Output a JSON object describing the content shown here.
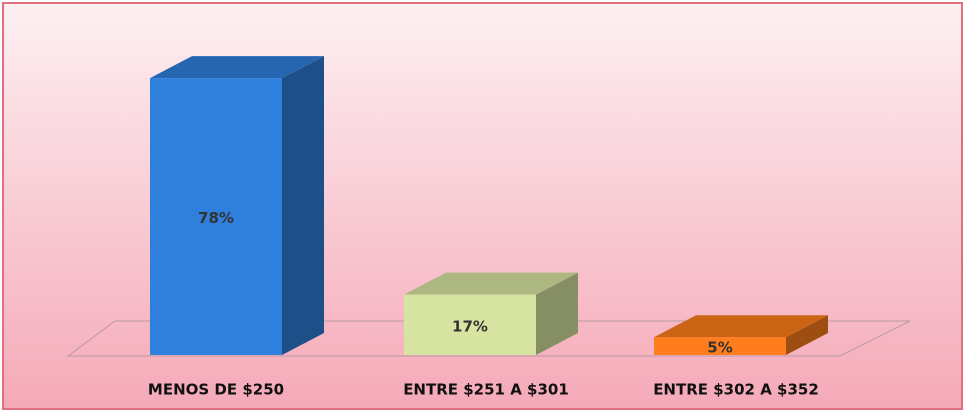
{
  "chart_data": {
    "type": "bar3d",
    "categories": [
      "MENOS DE $250",
      "ENTRE $251 A $301",
      "ENTRE $302 A $352"
    ],
    "values": [
      78,
      17,
      5
    ],
    "value_labels": [
      "78%",
      "17%",
      "5%"
    ],
    "colors": [
      "#2f80dc",
      "#d8e5a2",
      "#ff7d1c"
    ]
  }
}
